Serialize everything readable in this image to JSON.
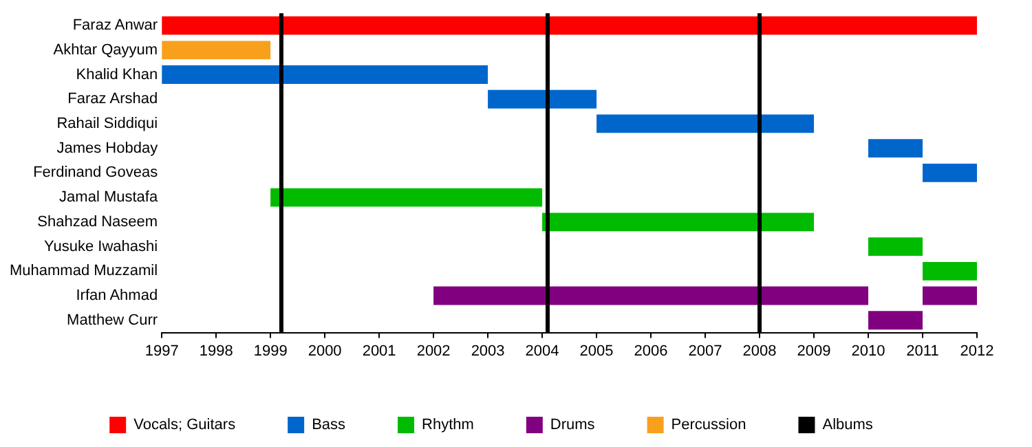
{
  "chart_data": {
    "type": "bar",
    "orientation": "horizontal",
    "categories": [
      "Faraz Anwar",
      "Akhtar Qayyum",
      "Khalid Khan",
      "Faraz Arshad",
      "Rahail Siddiqui",
      "James Hobday",
      "Ferdinand Goveas",
      "Jamal Mustafa",
      "Shahzad Naseem",
      "Yusuke Iwahashi",
      "Muhammad Muzzamil",
      "Irfan Ahmad",
      "Matthew Curr"
    ],
    "series": [
      {
        "name": "Vocals; Guitars",
        "color": "#ff0000",
        "base": [
          1997,
          null,
          null,
          null,
          null,
          null,
          null,
          null,
          null,
          null,
          null,
          null,
          null
        ],
        "values": [
          15,
          null,
          null,
          null,
          null,
          null,
          null,
          null,
          null,
          null,
          null,
          null,
          null
        ]
      },
      {
        "name": "Bass",
        "color": "#0066cc",
        "base": [
          null,
          null,
          1997,
          2003,
          2005,
          2010,
          2011,
          null,
          null,
          null,
          null,
          null,
          null
        ],
        "values": [
          null,
          null,
          6,
          2,
          4,
          1,
          1,
          null,
          null,
          null,
          null,
          null,
          null
        ]
      },
      {
        "name": "Rhythm",
        "color": "#00bb00",
        "base": [
          null,
          null,
          null,
          null,
          null,
          null,
          null,
          1999,
          2004,
          2010,
          2011,
          null,
          null
        ],
        "values": [
          null,
          null,
          null,
          null,
          null,
          null,
          null,
          5,
          5,
          1,
          1,
          null,
          null
        ]
      },
      {
        "name": "Drums",
        "color": "#800080",
        "base": [
          null,
          null,
          null,
          null,
          null,
          null,
          null,
          null,
          null,
          null,
          null,
          2002,
          2010
        ],
        "values": [
          null,
          null,
          null,
          null,
          null,
          null,
          null,
          null,
          null,
          null,
          null,
          8,
          1
        ]
      },
      {
        "color": "#800080",
        "base": [
          null,
          null,
          null,
          null,
          null,
          null,
          null,
          null,
          null,
          null,
          null,
          2011,
          null
        ],
        "values": [
          null,
          null,
          null,
          null,
          null,
          null,
          null,
          null,
          null,
          null,
          null,
          1,
          null
        ]
      },
      {
        "name": "Percussion",
        "color": "#f8a01c",
        "base": [
          null,
          1997,
          null,
          null,
          null,
          null,
          null,
          null,
          null,
          null,
          null,
          null,
          null
        ],
        "values": [
          null,
          2,
          null,
          null,
          null,
          null,
          null,
          null,
          null,
          null,
          null,
          null,
          null
        ]
      }
    ],
    "ref_lines": [
      {
        "axis": "x",
        "value": 1999.2,
        "label": "Albums",
        "color": "#000000"
      },
      {
        "axis": "x",
        "value": 2004.1,
        "color": "#000000"
      },
      {
        "axis": "x",
        "value": 2008.0,
        "color": "#000000"
      }
    ],
    "xlim": [
      1997,
      2012
    ],
    "xticks": [
      1997,
      1998,
      1999,
      2000,
      2001,
      2002,
      2003,
      2004,
      2005,
      2006,
      2007,
      2008,
      2009,
      2010,
      2011,
      2012
    ],
    "grid": false,
    "legend": "bottom"
  }
}
